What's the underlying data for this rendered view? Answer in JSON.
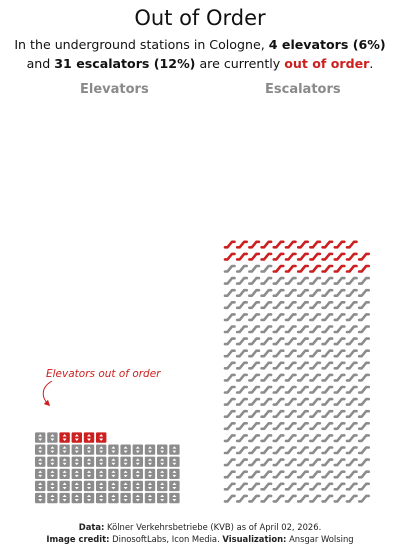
{
  "title": "Out of Order",
  "subtitle": {
    "line1_pre": "In the underground stations in Cologne, ",
    "line1_bold": "4 elevators (6%)",
    "line2_pre": "and ",
    "line2_bold": "31 escalators (12%)",
    "line2_mid": " are currently ",
    "line2_red": "out of order",
    "line2_end": "."
  },
  "annotation": "Elevators out of order",
  "footer": {
    "data_label": "Data:",
    "data_text": " Kölner Verkehrsbetriebe (KVB) as of April 02, 2026.",
    "credit_label": "Image credit:",
    "credit_text": " DinosoftLabs, Icon Media. ",
    "viz_label": "Visualization:",
    "viz_text": " Ansgar Wolsing"
  },
  "colors": {
    "out_of_order": "#cc1f1f",
    "working": "#8c8c8c"
  },
  "icons": {
    "elevator": "elevator-icon",
    "escalator": "escalator-icon"
  },
  "chart_data": {
    "type": "waffle",
    "series": [
      {
        "name": "Elevators",
        "total": 66,
        "out_of_order": 4,
        "percent_out": 6
      },
      {
        "name": "Escalators",
        "total": 263,
        "out_of_order": 31,
        "percent_out": 12
      }
    ]
  }
}
